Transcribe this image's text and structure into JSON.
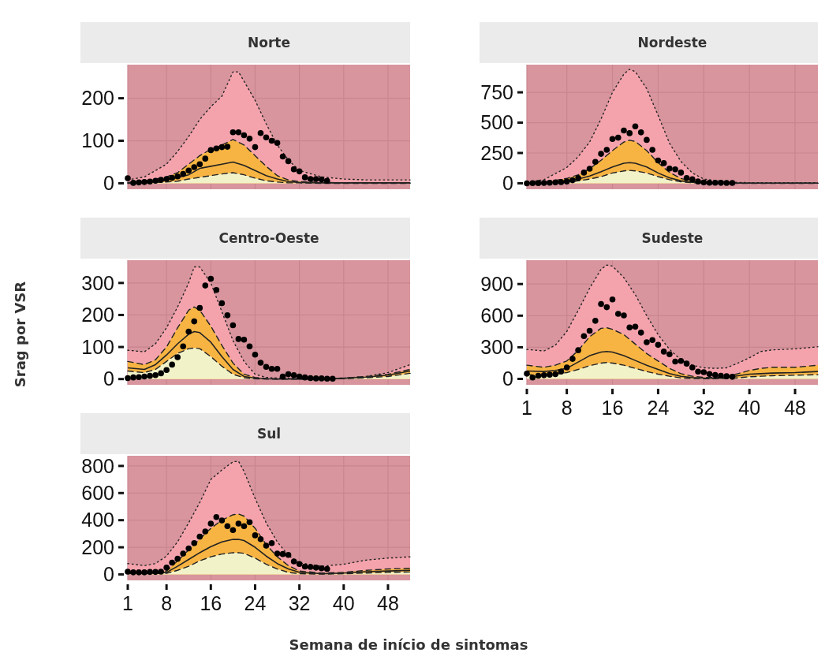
{
  "chart_data": [
    {
      "type": "line",
      "title": "Norte",
      "xlim": [
        1,
        52
      ],
      "xticks": [
        1,
        8,
        16,
        24,
        32,
        40,
        48
      ],
      "ylim": [
        -14,
        279
      ],
      "yticks": [
        0,
        100,
        200
      ],
      "grid": true,
      "tick_labels": "y",
      "series": [
        {
          "type": "area",
          "color": "#f4a3ad",
          "line_style": "dotted",
          "x": [
            1,
            4,
            8,
            10,
            12,
            14,
            16,
            18,
            20,
            21,
            22,
            24,
            26,
            28,
            30,
            32,
            36,
            40,
            44,
            48,
            52
          ],
          "values": [
            8,
            15,
            45,
            75,
            110,
            150,
            180,
            205,
            262,
            262,
            240,
            195,
            140,
            90,
            55,
            30,
            15,
            10,
            8,
            8,
            8
          ]
        },
        {
          "type": "area",
          "color": "#f7b443",
          "line_style": "dashed",
          "x": [
            1,
            4,
            8,
            10,
            12,
            14,
            16,
            18,
            20,
            22,
            24,
            26,
            28,
            30,
            32,
            36,
            40,
            44,
            48,
            52
          ],
          "values": [
            2,
            5,
            15,
            25,
            45,
            65,
            80,
            90,
            103,
            90,
            65,
            40,
            18,
            8,
            4,
            2,
            1,
            1,
            1,
            1
          ]
        },
        {
          "type": "area",
          "color": "#f2f2c9",
          "line_style": "dashed",
          "x": [
            1,
            4,
            8,
            10,
            12,
            14,
            16,
            18,
            20,
            22,
            24,
            26,
            28,
            30,
            32,
            36,
            40,
            44,
            48,
            52
          ],
          "values": [
            0,
            1,
            3,
            5,
            10,
            14,
            18,
            22,
            25,
            20,
            12,
            6,
            3,
            1,
            1,
            0,
            0,
            0,
            0,
            0
          ]
        },
        {
          "type": "line",
          "color": "#222222",
          "line_style": "solid",
          "x": [
            1,
            4,
            8,
            10,
            12,
            14,
            16,
            18,
            20,
            22,
            24,
            26,
            28,
            30,
            32,
            36,
            40,
            44,
            48,
            52
          ],
          "values": [
            1,
            3,
            8,
            14,
            20,
            35,
            40,
            45,
            50,
            42,
            30,
            18,
            10,
            4,
            2,
            1,
            1,
            1,
            1,
            1
          ]
        },
        {
          "type": "scatter",
          "color": "#000000",
          "marker": "circle",
          "x": [
            1,
            2,
            3,
            4,
            5,
            6,
            7,
            8,
            9,
            10,
            11,
            12,
            13,
            14,
            15,
            16,
            17,
            18,
            19,
            20,
            21,
            22,
            23,
            24,
            25,
            26,
            27,
            28,
            29,
            30,
            31,
            32,
            33,
            34,
            35,
            36,
            37
          ],
          "values": [
            12,
            1,
            2,
            3,
            4,
            6,
            8,
            10,
            13,
            16,
            22,
            30,
            38,
            45,
            58,
            78,
            82,
            85,
            86,
            120,
            120,
            113,
            105,
            85,
            118,
            108,
            100,
            95,
            63,
            52,
            33,
            28,
            14,
            10,
            10,
            9,
            6
          ]
        }
      ]
    },
    {
      "type": "line",
      "title": "Nordeste",
      "xlim": [
        1,
        52
      ],
      "xticks": [
        1,
        8,
        16,
        24,
        32,
        40,
        48
      ],
      "ylim": [
        -49,
        978
      ],
      "yticks": [
        0,
        250,
        500,
        750
      ],
      "grid": true,
      "tick_labels": "y",
      "series": [
        {
          "type": "area",
          "color": "#f4a3ad",
          "line_style": "dotted",
          "x": [
            1,
            4,
            8,
            10,
            12,
            14,
            16,
            18,
            19,
            20,
            22,
            24,
            26,
            28,
            30,
            32,
            36,
            40,
            44,
            48,
            52
          ],
          "values": [
            5,
            30,
            130,
            220,
            340,
            530,
            750,
            900,
            940,
            920,
            780,
            560,
            330,
            180,
            85,
            35,
            10,
            5,
            5,
            5,
            5
          ]
        },
        {
          "type": "area",
          "color": "#f7b443",
          "line_style": "dashed",
          "x": [
            1,
            4,
            8,
            10,
            12,
            14,
            16,
            18,
            19,
            20,
            22,
            24,
            26,
            28,
            30,
            32,
            36,
            40,
            44,
            48,
            52
          ],
          "values": [
            2,
            10,
            40,
            70,
            120,
            190,
            270,
            340,
            355,
            345,
            270,
            170,
            90,
            40,
            15,
            5,
            2,
            1,
            1,
            1,
            1
          ]
        },
        {
          "type": "area",
          "color": "#f2f2c9",
          "line_style": "dashed",
          "x": [
            1,
            4,
            8,
            10,
            12,
            14,
            16,
            18,
            19,
            20,
            22,
            24,
            26,
            28,
            30,
            32,
            36,
            40,
            44,
            48,
            52
          ],
          "values": [
            0,
            2,
            10,
            20,
            35,
            55,
            85,
            102,
            106,
            102,
            85,
            55,
            30,
            12,
            5,
            2,
            0,
            0,
            0,
            0,
            0
          ]
        },
        {
          "type": "line",
          "color": "#222222",
          "line_style": "solid",
          "x": [
            1,
            4,
            8,
            10,
            12,
            14,
            16,
            18,
            19,
            20,
            22,
            24,
            26,
            28,
            30,
            32,
            36,
            40,
            44,
            48,
            52
          ],
          "values": [
            1,
            5,
            20,
            35,
            60,
            95,
            135,
            165,
            170,
            165,
            135,
            85,
            45,
            20,
            8,
            3,
            1,
            1,
            1,
            1,
            1
          ]
        },
        {
          "type": "scatter",
          "color": "#000000",
          "marker": "circle",
          "x": [
            1,
            2,
            3,
            4,
            5,
            6,
            7,
            8,
            9,
            10,
            11,
            12,
            13,
            14,
            15,
            16,
            17,
            18,
            19,
            20,
            21,
            22,
            23,
            24,
            25,
            26,
            27,
            28,
            29,
            30,
            31,
            32,
            33,
            34,
            35,
            36,
            37
          ],
          "values": [
            0,
            1,
            2,
            3,
            5,
            8,
            10,
            15,
            25,
            44,
            88,
            120,
            177,
            243,
            276,
            365,
            376,
            435,
            413,
            469,
            420,
            358,
            276,
            188,
            166,
            122,
            115,
            88,
            44,
            33,
            15,
            8,
            5,
            5,
            4,
            3,
            3
          ]
        }
      ]
    },
    {
      "type": "line",
      "title": "Centro-Oeste",
      "ylabel": "Srag por VSR",
      "xlim": [
        1,
        52
      ],
      "xticks": [
        1,
        8,
        16,
        24,
        32,
        40,
        48
      ],
      "ylim": [
        -18,
        371
      ],
      "yticks": [
        0,
        100,
        200,
        300
      ],
      "grid": true,
      "tick_labels": "y",
      "series": [
        {
          "type": "area",
          "color": "#f4a3ad",
          "line_style": "dotted",
          "x": [
            1,
            4,
            6,
            8,
            10,
            12,
            13,
            14,
            16,
            18,
            20,
            22,
            24,
            26,
            28,
            32,
            36,
            40,
            44,
            48,
            52
          ],
          "values": [
            90,
            85,
            110,
            160,
            225,
            300,
            350,
            350,
            300,
            210,
            120,
            55,
            15,
            5,
            3,
            2,
            2,
            3,
            8,
            20,
            45
          ]
        },
        {
          "type": "area",
          "color": "#f7b443",
          "line_style": "dashed",
          "x": [
            1,
            4,
            6,
            8,
            10,
            12,
            13,
            14,
            16,
            18,
            20,
            22,
            24,
            26,
            28,
            32,
            36,
            40,
            44,
            48,
            52
          ],
          "values": [
            55,
            45,
            60,
            100,
            160,
            215,
            225,
            215,
            165,
            105,
            50,
            15,
            5,
            2,
            1,
            1,
            1,
            3,
            8,
            15,
            30
          ]
        },
        {
          "type": "area",
          "color": "#f2f2c9",
          "line_style": "dashed",
          "x": [
            1,
            4,
            6,
            8,
            10,
            12,
            13,
            14,
            16,
            18,
            20,
            22,
            24,
            26,
            28,
            32,
            36,
            40,
            44,
            48,
            52
          ],
          "values": [
            25,
            20,
            30,
            55,
            80,
            95,
            97,
            95,
            70,
            40,
            15,
            4,
            1,
            0,
            0,
            0,
            0,
            1,
            4,
            8,
            18
          ]
        },
        {
          "type": "line",
          "color": "#222222",
          "line_style": "solid",
          "x": [
            1,
            4,
            6,
            8,
            10,
            12,
            13,
            14,
            16,
            18,
            20,
            22,
            24,
            26,
            28,
            32,
            36,
            40,
            44,
            48,
            52
          ],
          "values": [
            35,
            30,
            45,
            75,
            110,
            140,
            148,
            145,
            115,
            70,
            30,
            8,
            3,
            1,
            0,
            0,
            0,
            2,
            6,
            12,
            25
          ]
        },
        {
          "type": "scatter",
          "color": "#000000",
          "marker": "circle",
          "x": [
            1,
            2,
            3,
            4,
            5,
            6,
            7,
            8,
            9,
            10,
            11,
            12,
            13,
            14,
            15,
            16,
            17,
            18,
            19,
            20,
            21,
            22,
            23,
            24,
            25,
            26,
            27,
            28,
            29,
            30,
            31,
            32,
            33,
            34,
            35,
            36,
            37,
            38
          ],
          "values": [
            3,
            5,
            6,
            8,
            10,
            12,
            18,
            28,
            45,
            68,
            102,
            148,
            180,
            222,
            292,
            313,
            278,
            237,
            199,
            168,
            125,
            123,
            102,
            76,
            51,
            38,
            32,
            32,
            8,
            15,
            12,
            8,
            5,
            3,
            2,
            2,
            1,
            1
          ]
        }
      ]
    },
    {
      "type": "line",
      "title": "Sudeste",
      "xlim": [
        1,
        52
      ],
      "xticks": [
        1,
        8,
        16,
        24,
        32,
        40,
        48
      ],
      "ylim": [
        -56,
        1126
      ],
      "yticks": [
        0,
        300,
        600,
        900
      ],
      "grid": true,
      "series": [
        {
          "type": "area",
          "color": "#f4a3ad",
          "line_style": "dotted",
          "x": [
            1,
            4,
            6,
            8,
            10,
            12,
            14,
            15,
            16,
            18,
            20,
            22,
            24,
            26,
            28,
            30,
            32,
            34,
            36,
            38,
            40,
            42,
            44,
            48,
            52
          ],
          "values": [
            280,
            265,
            320,
            450,
            650,
            860,
            1040,
            1080,
            1070,
            960,
            800,
            600,
            420,
            280,
            180,
            130,
            105,
            100,
            105,
            150,
            200,
            260,
            275,
            285,
            305
          ]
        },
        {
          "type": "area",
          "color": "#f7b443",
          "line_style": "dashed",
          "x": [
            1,
            4,
            6,
            8,
            10,
            12,
            14,
            15,
            16,
            18,
            20,
            22,
            24,
            26,
            28,
            30,
            32,
            34,
            36,
            38,
            40,
            42,
            44,
            48,
            52
          ],
          "values": [
            130,
            110,
            130,
            170,
            270,
            400,
            480,
            485,
            470,
            420,
            330,
            240,
            170,
            100,
            50,
            25,
            15,
            12,
            20,
            50,
            80,
            100,
            110,
            110,
            130
          ]
        },
        {
          "type": "area",
          "color": "#f2f2c9",
          "line_style": "dashed",
          "x": [
            1,
            4,
            6,
            8,
            10,
            12,
            14,
            15,
            16,
            18,
            20,
            22,
            24,
            26,
            28,
            30,
            32,
            34,
            36,
            38,
            40,
            42,
            44,
            48,
            52
          ],
          "values": [
            40,
            35,
            45,
            60,
            90,
            125,
            150,
            155,
            150,
            130,
            100,
            70,
            45,
            25,
            10,
            4,
            2,
            2,
            4,
            10,
            20,
            25,
            30,
            35,
            40
          ]
        },
        {
          "type": "line",
          "color": "#222222",
          "line_style": "solid",
          "x": [
            1,
            4,
            6,
            8,
            10,
            12,
            14,
            15,
            16,
            18,
            20,
            22,
            24,
            26,
            28,
            30,
            32,
            34,
            36,
            38,
            40,
            42,
            44,
            48,
            52
          ],
          "values": [
            75,
            70,
            80,
            100,
            160,
            220,
            255,
            260,
            255,
            220,
            175,
            130,
            90,
            50,
            25,
            12,
            8,
            6,
            12,
            30,
            45,
            50,
            55,
            60,
            70
          ]
        },
        {
          "type": "scatter",
          "color": "#000000",
          "marker": "circle",
          "x": [
            1,
            2,
            3,
            4,
            5,
            6,
            7,
            8,
            9,
            10,
            11,
            12,
            13,
            14,
            15,
            16,
            17,
            18,
            19,
            20,
            21,
            22,
            23,
            24,
            25,
            26,
            27,
            28,
            29,
            30,
            31,
            32,
            33,
            34,
            35,
            36,
            37
          ],
          "values": [
            50,
            13,
            30,
            35,
            40,
            45,
            69,
            109,
            190,
            272,
            406,
            457,
            551,
            711,
            680,
            754,
            617,
            602,
            488,
            495,
            439,
            348,
            368,
            323,
            259,
            234,
            165,
            170,
            145,
            109,
            69,
            64,
            46,
            38,
            30,
            25,
            20
          ]
        }
      ]
    },
    {
      "type": "line",
      "title": "Sul",
      "xlabel": "Semana de início de sintomas",
      "xlim": [
        1,
        52
      ],
      "xticks": [
        1,
        8,
        16,
        24,
        32,
        40,
        48
      ],
      "ylim": [
        -44,
        875
      ],
      "yticks": [
        0,
        200,
        400,
        600,
        800
      ],
      "grid": true,
      "series": [
        {
          "type": "area",
          "color": "#f4a3ad",
          "line_style": "dotted",
          "x": [
            1,
            4,
            6,
            8,
            10,
            12,
            14,
            16,
            18,
            20,
            21,
            22,
            24,
            26,
            28,
            30,
            32,
            36,
            40,
            44,
            48,
            52
          ],
          "values": [
            80,
            65,
            80,
            135,
            240,
            380,
            530,
            700,
            770,
            830,
            835,
            760,
            560,
            380,
            240,
            140,
            85,
            60,
            75,
            105,
            120,
            130
          ]
        },
        {
          "type": "area",
          "color": "#f7b443",
          "line_style": "dashed",
          "x": [
            1,
            4,
            6,
            8,
            10,
            12,
            14,
            16,
            18,
            20,
            21,
            22,
            24,
            26,
            28,
            30,
            32,
            36,
            40,
            44,
            48,
            52
          ],
          "values": [
            15,
            15,
            18,
            25,
            100,
            180,
            260,
            340,
            400,
            440,
            445,
            430,
            340,
            220,
            130,
            65,
            25,
            10,
            15,
            30,
            40,
            45
          ]
        },
        {
          "type": "area",
          "color": "#f2f2c9",
          "line_style": "dashed",
          "x": [
            1,
            4,
            6,
            8,
            10,
            12,
            14,
            16,
            18,
            20,
            21,
            22,
            24,
            26,
            28,
            30,
            32,
            36,
            40,
            44,
            48,
            52
          ],
          "values": [
            5,
            5,
            6,
            8,
            30,
            60,
            100,
            130,
            150,
            160,
            160,
            155,
            120,
            75,
            40,
            15,
            5,
            2,
            5,
            10,
            15,
            18
          ]
        },
        {
          "type": "line",
          "color": "#222222",
          "line_style": "solid",
          "x": [
            1,
            4,
            6,
            8,
            10,
            12,
            14,
            16,
            18,
            20,
            21,
            22,
            24,
            26,
            28,
            30,
            32,
            36,
            40,
            44,
            48,
            52
          ],
          "values": [
            10,
            10,
            12,
            15,
            60,
            110,
            160,
            205,
            240,
            258,
            258,
            250,
            200,
            135,
            80,
            40,
            15,
            5,
            10,
            20,
            25,
            30
          ]
        },
        {
          "type": "scatter",
          "color": "#000000",
          "marker": "circle",
          "x": [
            1,
            2,
            3,
            4,
            5,
            6,
            7,
            8,
            9,
            10,
            11,
            12,
            13,
            14,
            15,
            16,
            17,
            18,
            19,
            20,
            21,
            22,
            23,
            24,
            25,
            26,
            27,
            28,
            29,
            30,
            31,
            32,
            33,
            34,
            35,
            36,
            37
          ],
          "values": [
            20,
            15,
            15,
            15,
            18,
            18,
            20,
            50,
            87,
            115,
            154,
            192,
            231,
            279,
            317,
            375,
            423,
            398,
            356,
            327,
            375,
            356,
            385,
            288,
            260,
            212,
            231,
            154,
            150,
            144,
            96,
            77,
            58,
            55,
            50,
            45,
            40
          ]
        }
      ]
    }
  ]
}
